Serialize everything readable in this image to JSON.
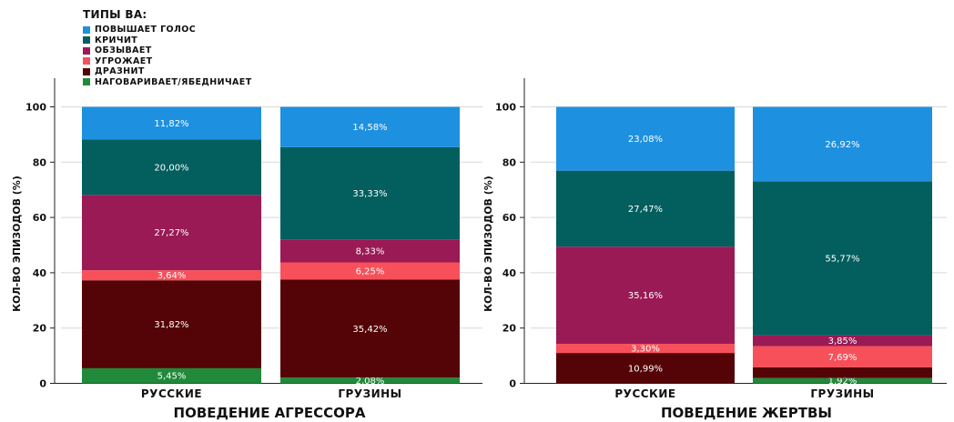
{
  "legend": {
    "title": "ТИПЫ ВА:",
    "items": [
      {
        "label": "ПОВЫШАЕТ ГОЛОС",
        "color": "#1e90e0"
      },
      {
        "label": "КРИЧИТ",
        "color": "#035e5e"
      },
      {
        "label": "ОБЗЫВАЕТ",
        "color": "#9a1a55"
      },
      {
        "label": "УГРОЖАЕТ",
        "color": "#f7505a"
      },
      {
        "label": "ДРАЗНИТ",
        "color": "#540406"
      },
      {
        "label": "НАГОВАРИВАЕТ/ЯБЕДНИЧАЕТ",
        "color": "#208a3a"
      }
    ]
  },
  "chart_data": [
    {
      "type": "bar",
      "stacked": true,
      "title": "ПОВЕДЕНИЕ АГРЕССОРА",
      "xlabel": "ПОВЕДЕНИЕ АГРЕССОРА",
      "ylabel": "КОЛ-ВО ЭПИЗОДОВ (%)",
      "ylim": [
        0,
        110
      ],
      "yticks": [
        0,
        20,
        40,
        60,
        80,
        100
      ],
      "categories": [
        "РУССКИЕ",
        "ГРУЗИНЫ"
      ],
      "series": [
        {
          "name": "НАГОВАРИВАЕТ/ЯБЕДНИЧАЕТ",
          "values": [
            5.45,
            2.08
          ],
          "labels": [
            "5,45%",
            "2,08%"
          ]
        },
        {
          "name": "ДРАЗНИТ",
          "values": [
            31.82,
            35.42
          ],
          "labels": [
            "31,82%",
            "35,42%"
          ]
        },
        {
          "name": "УГРОЖАЕТ",
          "values": [
            3.64,
            6.25
          ],
          "labels": [
            "3,64%",
            "6,25%"
          ]
        },
        {
          "name": "ОБЗЫВАЕТ",
          "values": [
            27.27,
            8.33
          ],
          "labels": [
            "27,27%",
            "8,33%"
          ]
        },
        {
          "name": "КРИЧИТ",
          "values": [
            20.0,
            33.33
          ],
          "labels": [
            "20,00%",
            "33,33%"
          ]
        },
        {
          "name": "ПОВЫШАЕТ ГОЛОС",
          "values": [
            11.82,
            14.58
          ],
          "labels": [
            "11,82%",
            "14,58%"
          ]
        }
      ]
    },
    {
      "type": "bar",
      "stacked": true,
      "title": "ПОВЕДЕНИЕ ЖЕРТВЫ",
      "xlabel": "ПОВЕДЕНИЕ ЖЕРТВЫ",
      "ylabel": "КОЛ-ВО ЭПИЗОДОВ (%)",
      "ylim": [
        0,
        110
      ],
      "yticks": [
        0,
        20,
        40,
        60,
        80,
        100
      ],
      "categories": [
        "РУССКИЕ",
        "ГРУЗИНЫ"
      ],
      "series": [
        {
          "name": "НАГОВАРИВАЕТ/ЯБЕДНИЧАЕТ",
          "values": [
            0,
            1.92
          ],
          "labels": [
            "",
            "1,92%"
          ]
        },
        {
          "name": "ДРАЗНИТ",
          "values": [
            10.99,
            3.85
          ],
          "labels": [
            "10,99%",
            ""
          ]
        },
        {
          "name": "УГРОЖАЕТ",
          "values": [
            3.3,
            7.69
          ],
          "labels": [
            "3,30%",
            "7,69%"
          ]
        },
        {
          "name": "ОБЗЫВАЕТ",
          "values": [
            35.16,
            3.85
          ],
          "labels": [
            "35,16%",
            "3,85%"
          ]
        },
        {
          "name": "КРИЧИТ",
          "values": [
            27.47,
            55.77
          ],
          "labels": [
            "27,47%",
            "55,77%"
          ]
        },
        {
          "name": "ПОВЫШАЕТ ГОЛОС",
          "values": [
            23.08,
            26.92
          ],
          "labels": [
            "23,08%",
            "26,92%"
          ]
        }
      ]
    }
  ]
}
